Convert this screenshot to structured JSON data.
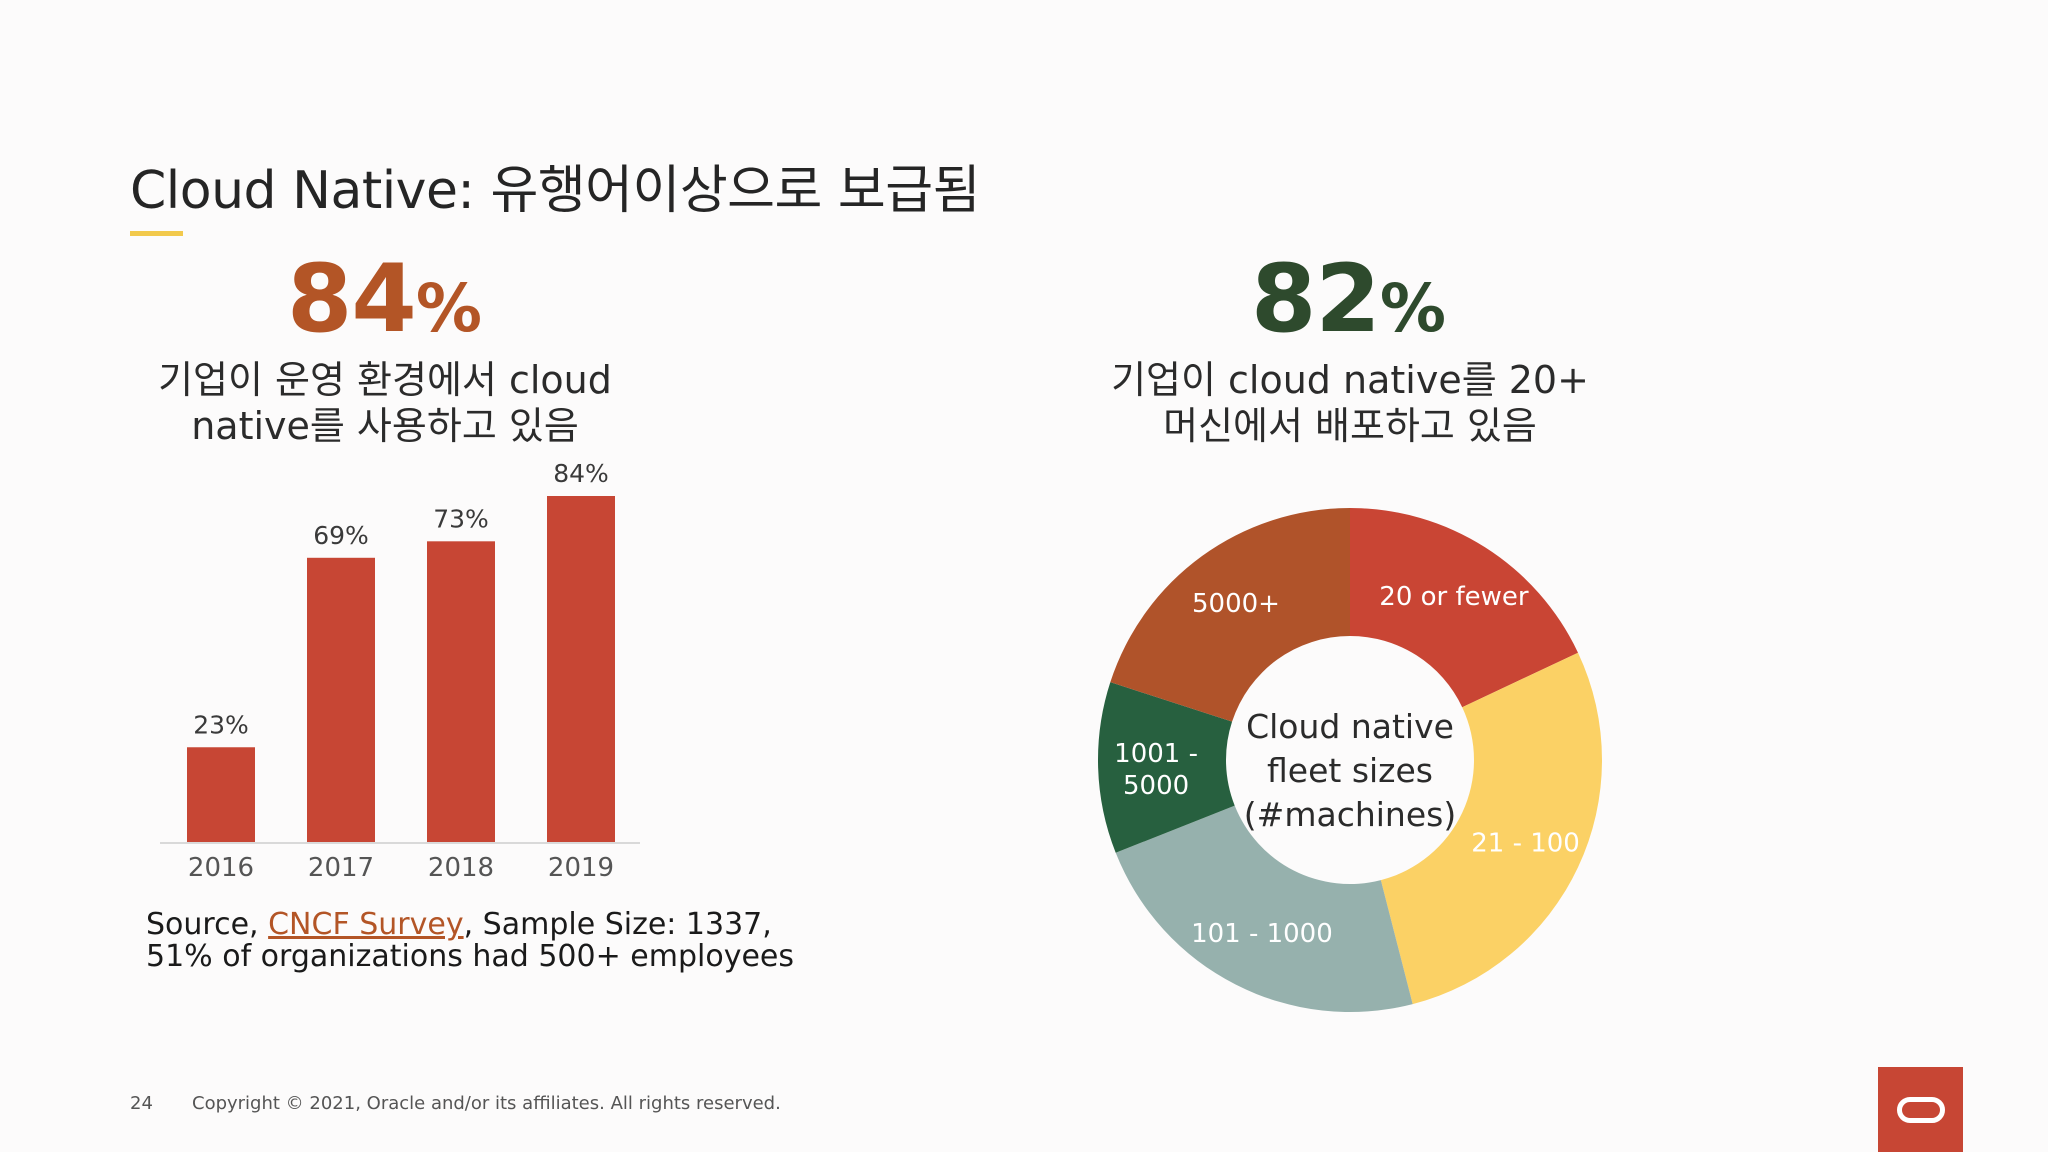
{
  "title": "Cloud Native: 유행어이상으로 보급됨",
  "left": {
    "stat_value": "84",
    "stat_unit": "%",
    "caption_line1": "기업이 운영 환경에서 cloud",
    "caption_line2": "native를 사용하고 있음"
  },
  "right": {
    "stat_value": "82",
    "stat_unit": "%",
    "caption_line1": "기업이 cloud native를 20+",
    "caption_line2": "머신에서 배포하고 있음"
  },
  "source": {
    "prefix": "Source, ",
    "link_text": "CNCF Survey",
    "suffix": ", Sample Size: 1337,",
    "line2": "51% of organizations had 500+ employees"
  },
  "footer": {
    "page_number": "24",
    "copyright": "Copyright © 2021, Oracle and/or its affiliates. All rights reserved."
  },
  "logo": {
    "icon": "oracle-logo-icon",
    "color": "#c74634"
  },
  "chart_data": [
    {
      "type": "bar",
      "title": "",
      "categories": [
        "2016",
        "2017",
        "2018",
        "2019"
      ],
      "values": [
        23,
        69,
        73,
        84
      ],
      "value_labels": [
        "23%",
        "69%",
        "73%",
        "84%"
      ],
      "ylim": [
        0,
        84
      ],
      "grid": false,
      "color": "#c74634"
    },
    {
      "type": "pie",
      "variant": "donut",
      "center_label": [
        "Cloud native",
        "fleet sizes",
        "(#machines)"
      ],
      "labels": [
        "20 or fewer",
        "21 - 100",
        "101 - 1000",
        "1001 - 5000",
        "5000+"
      ],
      "values": [
        18,
        28,
        23,
        11,
        20
      ],
      "colors": [
        "#c94534",
        "#fbd165",
        "#96b1ad",
        "#27603f",
        "#b0532a"
      ],
      "label_colors": [
        "#ffffff",
        "#ffffff",
        "#ffffff",
        "#ffffff",
        "#ffffff"
      ]
    }
  ]
}
